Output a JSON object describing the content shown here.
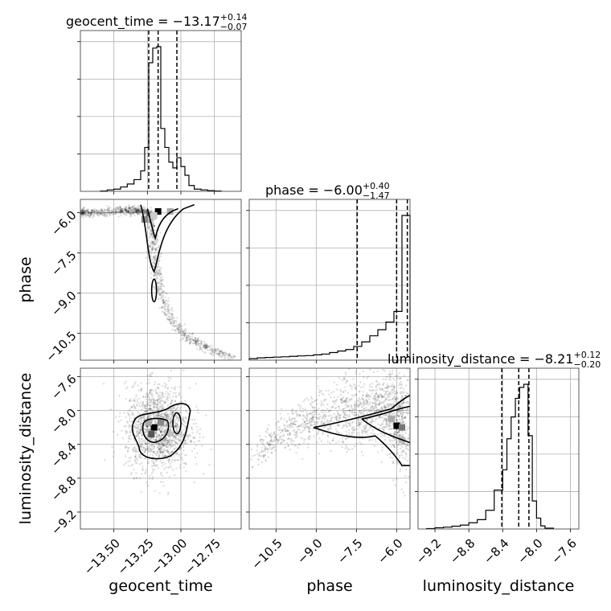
{
  "chart_data": {
    "type": "corner",
    "parameters": [
      "geocent_time",
      "phase",
      "luminosity_distance"
    ],
    "titles": [
      {
        "param": "geocent_time",
        "median": "−13.17",
        "plus": "+0.14",
        "minus": "−0.07"
      },
      {
        "param": "phase",
        "median": "−6.00",
        "plus": "+0.40",
        "minus": "−1.47"
      },
      {
        "param": "luminosity_distance",
        "median": "−8.21",
        "plus": "+0.12",
        "minus": "−0.20"
      }
    ],
    "axes": {
      "geocent_time": {
        "range": [
          -13.75,
          -12.55
        ],
        "ticks": [
          -13.5,
          -13.25,
          -13.0,
          -12.75
        ],
        "tick_labels": [
          "−13.50",
          "−13.25",
          "−13.00",
          "−12.75"
        ]
      },
      "phase": {
        "range": [
          -11.5,
          -5.5
        ],
        "ticks": [
          -10.5,
          -9.0,
          -7.5,
          -6.0
        ],
        "tick_labels": [
          "−10.5",
          "−9.0",
          "−7.5",
          "−6.0"
        ]
      },
      "luminosity_distance": {
        "range": [
          -9.4,
          -7.5
        ],
        "ticks": [
          -9.2,
          -8.8,
          -8.4,
          -8.0,
          -7.6
        ],
        "tick_labels": [
          "−9.2",
          "−8.8",
          "−8.4",
          "−8.0",
          "−7.6"
        ]
      }
    },
    "quantiles": {
      "geocent_time": [
        -13.24,
        -13.17,
        -13.03
      ],
      "phase": [
        -7.47,
        -6.0,
        -5.6
      ],
      "luminosity_distance": [
        -8.41,
        -8.21,
        -8.09
      ]
    },
    "histograms": {
      "geocent_time": {
        "edges": [
          -13.6,
          -13.55,
          -13.5,
          -13.45,
          -13.4,
          -13.35,
          -13.3,
          -13.27,
          -13.24,
          -13.21,
          -13.18,
          -13.15,
          -13.12,
          -13.09,
          -13.06,
          -13.03,
          -13.0,
          -12.97,
          -12.94,
          -12.9,
          -12.85,
          -12.8,
          -12.75,
          -12.7
        ],
        "counts": [
          0.002,
          0.01,
          0.015,
          0.03,
          0.05,
          0.08,
          0.14,
          0.3,
          0.88,
          0.98,
          0.99,
          0.43,
          0.3,
          0.2,
          0.16,
          0.23,
          0.17,
          0.11,
          0.04,
          0.015,
          0.01,
          0.005,
          0.002
        ]
      },
      "phase": {
        "edges": [
          -11.5,
          -11.2,
          -10.9,
          -10.6,
          -10.3,
          -10.0,
          -9.7,
          -9.4,
          -9.1,
          -8.8,
          -8.5,
          -8.2,
          -7.9,
          -7.6,
          -7.3,
          -7.0,
          -6.7,
          -6.4,
          -6.1,
          -5.8,
          -5.5
        ],
        "counts": [
          0.01,
          0.015,
          0.018,
          0.02,
          0.022,
          0.025,
          0.028,
          0.03,
          0.035,
          0.04,
          0.05,
          0.06,
          0.07,
          0.09,
          0.12,
          0.16,
          0.2,
          0.25,
          0.32,
          0.95
        ]
      },
      "luminosity_distance": {
        "edges": [
          -9.3,
          -9.2,
          -9.1,
          -9.0,
          -8.9,
          -8.8,
          -8.7,
          -8.6,
          -8.5,
          -8.4,
          -8.35,
          -8.3,
          -8.25,
          -8.2,
          -8.15,
          -8.1,
          -8.05,
          -8.0,
          -7.95,
          -7.9,
          -7.8
        ],
        "counts": [
          0.003,
          0.008,
          0.012,
          0.018,
          0.025,
          0.04,
          0.06,
          0.12,
          0.25,
          0.38,
          0.58,
          0.72,
          0.84,
          0.91,
          0.93,
          0.6,
          0.18,
          0.07,
          0.02,
          0.005
        ]
      }
    },
    "hist2d": {
      "phase_vs_geocent_time": {
        "curve": [
          [
            -13.75,
            -6.0
          ],
          [
            -13.45,
            -5.95
          ],
          [
            -13.3,
            -5.9
          ],
          [
            -13.22,
            -6.1
          ],
          [
            -13.2,
            -7.0
          ],
          [
            -13.19,
            -8.0
          ],
          [
            -13.15,
            -9.0
          ],
          [
            -13.07,
            -10.0
          ],
          [
            -12.95,
            -10.7
          ],
          [
            -12.82,
            -11.0
          ],
          [
            -12.6,
            -11.45
          ]
        ],
        "peak": [
          -13.17,
          -5.95
        ]
      },
      "luminosity_distance_vs_geocent_time": {
        "center": [
          -13.17,
          -8.21
        ],
        "spread": [
          0.12,
          0.25
        ]
      },
      "luminosity_distance_vs_phase": {
        "curve": [
          [
            -11.5,
            -8.65
          ],
          [
            -10.5,
            -8.3
          ],
          [
            -9.0,
            -8.08
          ],
          [
            -7.5,
            -8.02
          ],
          [
            -6.3,
            -8.0
          ],
          [
            -5.6,
            -8.2
          ]
        ],
        "peak": [
          -6.0,
          -8.18
        ]
      }
    },
    "grid": true
  }
}
